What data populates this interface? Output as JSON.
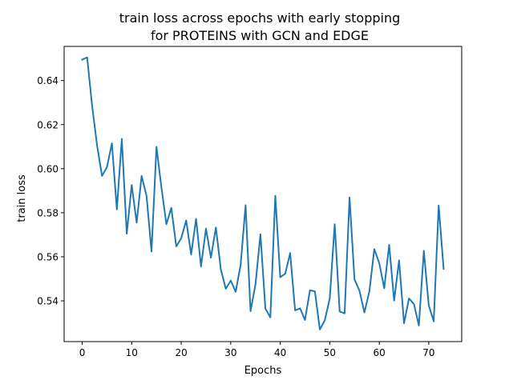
{
  "chart_data": {
    "type": "line",
    "title_line1": "train loss across epochs with early stopping",
    "title_line2": "for PROTEINS with GCN and EDGE",
    "xlabel": "Epochs",
    "ylabel": "train loss",
    "xlim": [
      -3.65,
      76.65
    ],
    "ylim": [
      0.5215,
      0.6555
    ],
    "xticks": [
      0,
      10,
      20,
      30,
      40,
      50,
      60,
      70
    ],
    "xtick_labels": [
      "0",
      "10",
      "20",
      "30",
      "40",
      "50",
      "60",
      "70"
    ],
    "yticks": [
      0.54,
      0.56,
      0.58,
      0.6,
      0.62,
      0.64
    ],
    "ytick_labels": [
      "0.54",
      "0.56",
      "0.58",
      "0.60",
      "0.62",
      "0.64"
    ],
    "grid": false,
    "line_color": "#1f77b4",
    "series": [
      {
        "x": [
          0,
          1,
          2,
          3,
          4,
          5,
          6,
          7,
          8,
          9,
          10,
          11,
          12,
          13,
          14,
          15,
          16,
          17,
          18,
          19,
          20,
          21,
          22,
          23,
          24,
          25,
          26,
          27,
          28,
          29,
          30,
          31,
          32,
          33,
          34,
          35,
          36,
          37,
          38,
          39,
          40,
          41,
          42,
          43,
          44,
          45,
          46,
          47,
          48,
          49,
          50,
          51,
          52,
          53,
          54,
          55,
          56,
          57,
          58,
          59,
          60,
          61,
          62,
          63,
          64,
          65,
          66,
          67,
          68,
          69,
          70,
          71,
          72,
          73
        ],
        "values": [
          0.6495,
          0.6505,
          0.6286,
          0.6106,
          0.5967,
          0.6007,
          0.6115,
          0.5815,
          0.6135,
          0.5705,
          0.5926,
          0.5755,
          0.5967,
          0.5876,
          0.5624,
          0.6099,
          0.5916,
          0.5748,
          0.5822,
          0.5647,
          0.5684,
          0.5765,
          0.5611,
          0.5772,
          0.5556,
          0.5728,
          0.5596,
          0.5733,
          0.5543,
          0.5455,
          0.5492,
          0.5441,
          0.5563,
          0.5834,
          0.5353,
          0.5475,
          0.5702,
          0.5365,
          0.5325,
          0.5877,
          0.5507,
          0.5523,
          0.5617,
          0.5357,
          0.5366,
          0.5313,
          0.5448,
          0.5443,
          0.527,
          0.5312,
          0.5411,
          0.5748,
          0.5352,
          0.5343,
          0.5869,
          0.5497,
          0.5446,
          0.5347,
          0.5443,
          0.5635,
          0.5571,
          0.5457,
          0.5654,
          0.5401,
          0.5584,
          0.5298,
          0.5411,
          0.5386,
          0.5288,
          0.5627,
          0.5379,
          0.5307,
          0.5833,
          0.5545
        ]
      }
    ]
  }
}
